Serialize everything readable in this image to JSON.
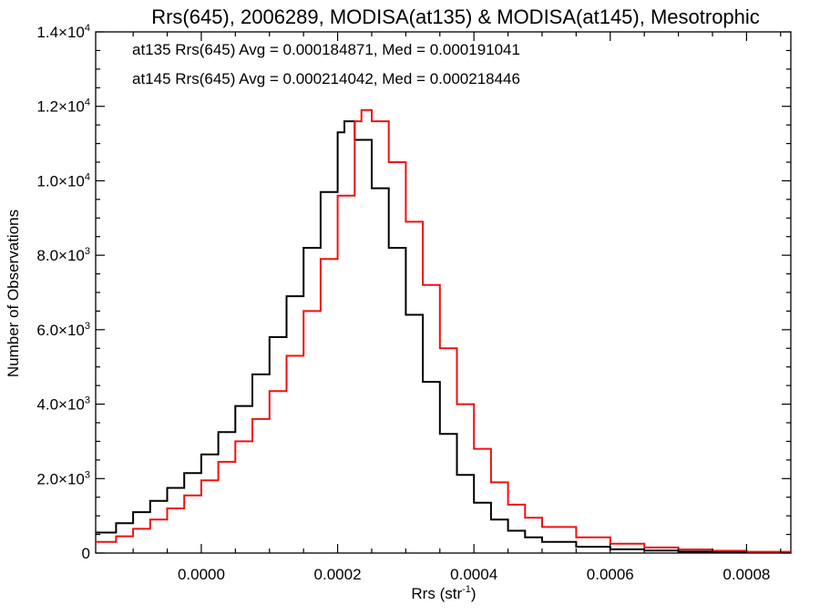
{
  "chart_data": {
    "type": "histogram-step",
    "title": "Rrs(645), 2006289, MODISA(at135) & MODISA(at145), Mesotrophic",
    "xlabel": "Rrs (str",
    "xlabel_sup": "-1",
    "xlabel_close": ")",
    "ylabel": "Number of Observations",
    "xlim": [
      -0.000155,
      0.000865
    ],
    "ylim": [
      0,
      14000
    ],
    "x_ticks": [
      {
        "value": 0.0,
        "label": "0.0000"
      },
      {
        "value": 0.0002,
        "label": "0.0002"
      },
      {
        "value": 0.0004,
        "label": "0.0004"
      },
      {
        "value": 0.0006,
        "label": "0.0006"
      },
      {
        "value": 0.0008,
        "label": "0.0008"
      }
    ],
    "y_ticks": [
      {
        "value": 0,
        "label": "0",
        "exp": ""
      },
      {
        "value": 2000,
        "label": "2.0×10",
        "exp": "3"
      },
      {
        "value": 4000,
        "label": "4.0×10",
        "exp": "3"
      },
      {
        "value": 6000,
        "label": "6.0×10",
        "exp": "3"
      },
      {
        "value": 8000,
        "label": "8.0×10",
        "exp": "3"
      },
      {
        "value": 10000,
        "label": "1.0×10",
        "exp": "4"
      },
      {
        "value": 12000,
        "label": "1.2×10",
        "exp": "4"
      },
      {
        "value": 14000,
        "label": "1.4×10",
        "exp": "4"
      }
    ],
    "legend": [
      {
        "text": "at135 Rrs(645) Avg = 0.000184871, Med = 0.000191041",
        "color": "#000000"
      },
      {
        "text": "at145 Rrs(645) Avg = 0.000214042, Med = 0.000218446",
        "color": "#ee1111"
      }
    ],
    "series": [
      {
        "color": "#000000",
        "x": [
          -0.000155,
          -0.000125,
          -0.0001,
          -7.5e-05,
          -5e-05,
          -2.5e-05,
          0.0,
          2.5e-05,
          5e-05,
          7.5e-05,
          0.0001,
          0.000125,
          0.00015,
          0.000175,
          0.0002,
          0.00021,
          0.000225,
          0.00025,
          0.000275,
          0.0003,
          0.000325,
          0.00035,
          0.000375,
          0.0004,
          0.000425,
          0.00045,
          0.000475,
          0.0005,
          0.00055,
          0.0006,
          0.00065,
          0.0007,
          0.00075,
          0.0008,
          0.000865
        ],
        "values": [
          550,
          800,
          1100,
          1400,
          1750,
          2150,
          2650,
          3250,
          3950,
          4800,
          5800,
          6900,
          8200,
          9700,
          11300,
          11600,
          11100,
          9800,
          8200,
          6400,
          4600,
          3200,
          2100,
          1350,
          900,
          600,
          420,
          300,
          170,
          100,
          65,
          40,
          25,
          15,
          8
        ]
      },
      {
        "color": "#ee1111",
        "x": [
          -0.000155,
          -0.000125,
          -0.0001,
          -7.5e-05,
          -5e-05,
          -2.5e-05,
          0.0,
          2.5e-05,
          5e-05,
          7.5e-05,
          0.0001,
          0.000125,
          0.00015,
          0.000175,
          0.0002,
          0.000225,
          0.000235,
          0.00025,
          0.000275,
          0.0003,
          0.000325,
          0.00035,
          0.000375,
          0.0004,
          0.000425,
          0.00045,
          0.000475,
          0.0005,
          0.00055,
          0.0006,
          0.00065,
          0.0007,
          0.00075,
          0.0008,
          0.000865
        ],
        "values": [
          300,
          450,
          650,
          900,
          1200,
          1550,
          1950,
          2450,
          3000,
          3600,
          4350,
          5300,
          6500,
          7900,
          9600,
          11600,
          11900,
          11600,
          10500,
          8900,
          7200,
          5500,
          4000,
          2800,
          1900,
          1300,
          950,
          700,
          420,
          250,
          150,
          95,
          60,
          35,
          15
        ]
      }
    ]
  }
}
